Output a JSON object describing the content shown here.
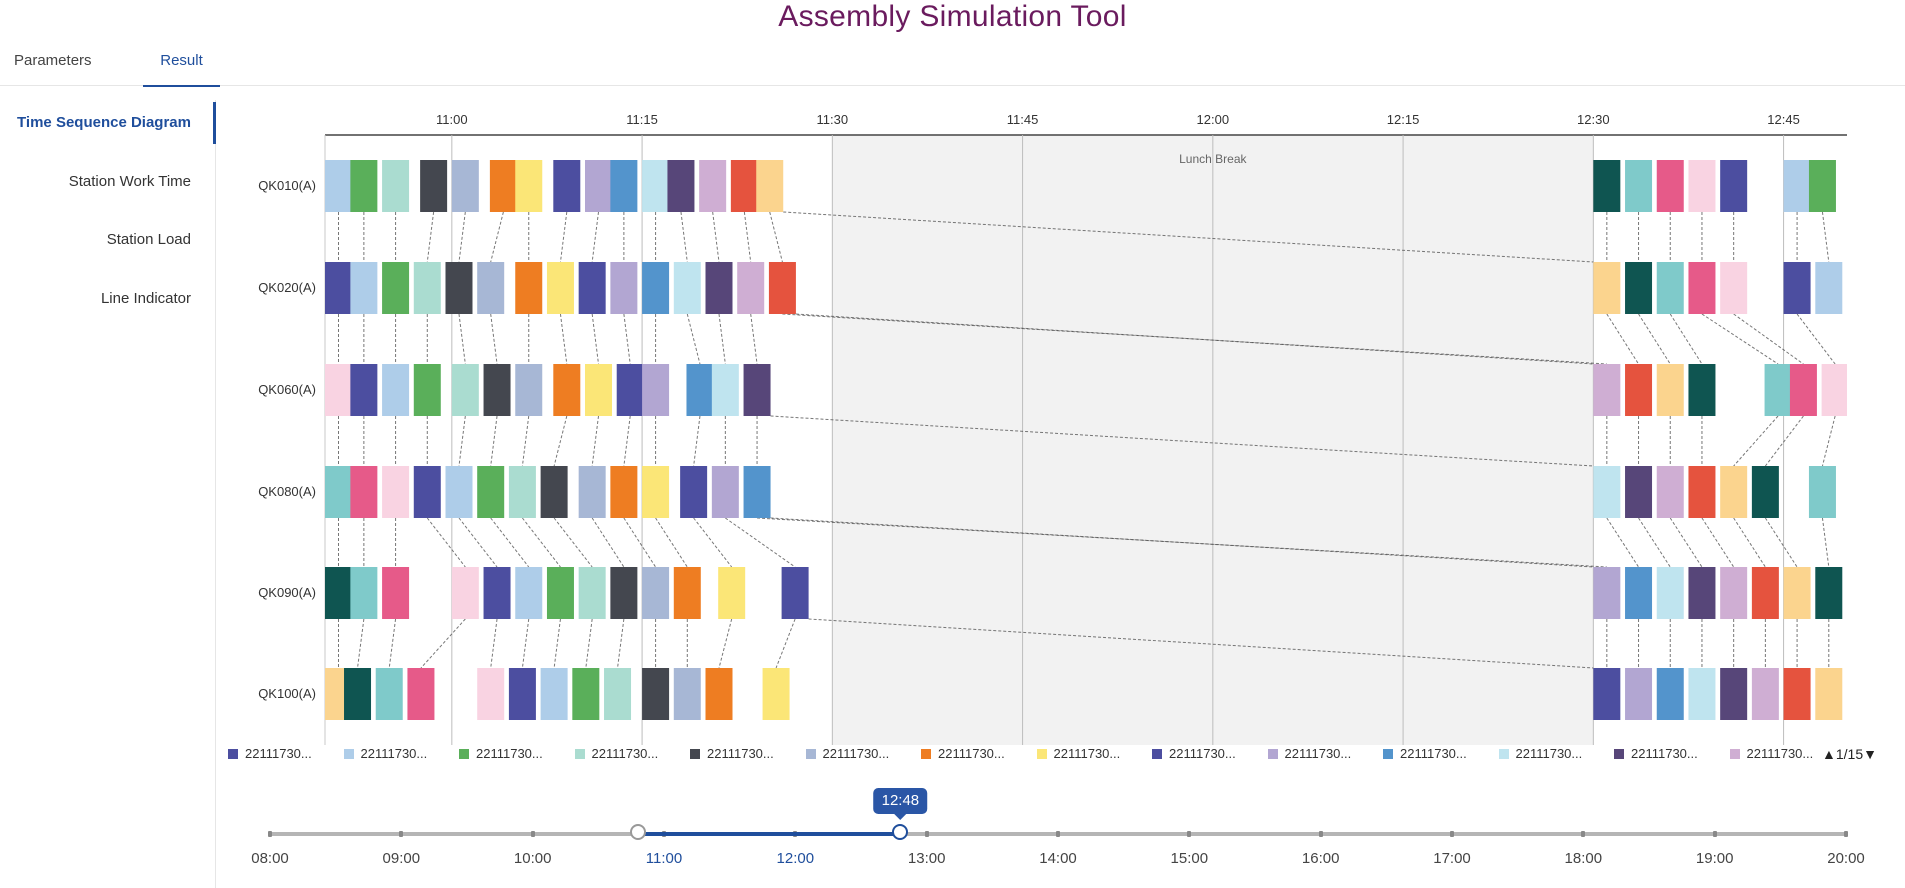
{
  "app": {
    "title": "Assembly Simulation Tool"
  },
  "tabs": [
    {
      "label": "Parameters",
      "active": false
    },
    {
      "label": "Result",
      "active": true
    }
  ],
  "sidebar": {
    "items": [
      {
        "label": "Time Sequence Diagram",
        "active": true
      },
      {
        "label": "Station Work Time",
        "active": false
      },
      {
        "label": "Station Load",
        "active": false
      },
      {
        "label": "Line Indicator",
        "active": false
      }
    ]
  },
  "colors": {
    "navy": "#4c4ea0",
    "light_blue": "#aecde9",
    "green": "#5aaf5a",
    "mint": "#aadcd0",
    "charcoal": "#44474f",
    "steel": "#a7b7d5",
    "orange": "#ee7d22",
    "yellow": "#fbe677",
    "lavender": "#b2a6d2",
    "blue": "#5394cc",
    "pale_cyan": "#bfe4ef",
    "purple": "#574679",
    "mauve": "#cfaed3",
    "red": "#e5533e",
    "peach": "#fbd48e",
    "teal_dark": "#0f5551",
    "teal": "#7fcaca",
    "pink": "#e65a89",
    "pale_pink": "#f9d3e2",
    "accent": "#1f4e9c",
    "title": "#6a1b5e",
    "break_bg": "#f2f2f2"
  },
  "chart_data": {
    "type": "gantt",
    "x_axis": {
      "min": "10:50",
      "max": "12:50",
      "ticks": [
        "11:00",
        "11:15",
        "11:30",
        "11:45",
        "12:00",
        "12:15",
        "12:30",
        "12:45"
      ]
    },
    "break": {
      "label": "Lunch Break",
      "start": "11:30",
      "end": "12:30"
    },
    "stations": [
      "QK010(A)",
      "QK020(A)",
      "QK060(A)",
      "QK080(A)",
      "QK090(A)",
      "QK100(A)"
    ],
    "tasks": [
      [
        [
          "10:50.0",
          "light_blue"
        ],
        [
          "10:52.0",
          "green"
        ],
        [
          "10:54.5",
          "mint"
        ],
        [
          "10:57.5",
          "charcoal"
        ],
        [
          "11:00.0",
          "steel"
        ],
        [
          "11:03.0",
          "orange"
        ],
        [
          "11:05.0",
          "yellow"
        ],
        [
          "11:08.0",
          "navy"
        ],
        [
          "11:10.5",
          "lavender"
        ],
        [
          "11:12.5",
          "blue"
        ],
        [
          "11:15.0",
          "pale_cyan"
        ],
        [
          "11:17.0",
          "purple"
        ],
        [
          "11:19.5",
          "mauve"
        ],
        [
          "11:22.0",
          "red"
        ],
        [
          "11:24.0",
          "peach"
        ],
        [
          "12:30.0",
          "teal_dark"
        ],
        [
          "12:32.5",
          "teal"
        ],
        [
          "12:35.0",
          "pink"
        ],
        [
          "12:37.5",
          "pale_pink"
        ],
        [
          "12:40.0",
          "navy"
        ],
        [
          "12:45.0",
          "light_blue"
        ],
        [
          "12:47.0",
          "green"
        ]
      ],
      [
        [
          "10:50.0",
          "navy"
        ],
        [
          "10:52.0",
          "light_blue"
        ],
        [
          "10:54.5",
          "green"
        ],
        [
          "10:57.0",
          "mint"
        ],
        [
          "10:59.5",
          "charcoal"
        ],
        [
          "11:02.0",
          "steel"
        ],
        [
          "11:05.0",
          "orange"
        ],
        [
          "11:07.5",
          "yellow"
        ],
        [
          "11:10.0",
          "navy"
        ],
        [
          "11:12.5",
          "lavender"
        ],
        [
          "11:15.0",
          "blue"
        ],
        [
          "11:17.5",
          "pale_cyan"
        ],
        [
          "11:20.0",
          "purple"
        ],
        [
          "11:22.5",
          "mauve"
        ],
        [
          "11:25.0",
          "red"
        ],
        [
          "12:30.0",
          "peach"
        ],
        [
          "12:32.5",
          "teal_dark"
        ],
        [
          "12:35.0",
          "teal"
        ],
        [
          "12:37.5",
          "pink"
        ],
        [
          "12:40.0",
          "pale_pink"
        ],
        [
          "12:45.0",
          "navy"
        ],
        [
          "12:47.5",
          "light_blue"
        ]
      ],
      [
        [
          "10:50.0",
          "pale_pink"
        ],
        [
          "10:52.0",
          "navy"
        ],
        [
          "10:54.5",
          "light_blue"
        ],
        [
          "10:57.0",
          "green"
        ],
        [
          "11:00.0",
          "mint"
        ],
        [
          "11:02.5",
          "charcoal"
        ],
        [
          "11:05.0",
          "steel"
        ],
        [
          "11:08.0",
          "orange"
        ],
        [
          "11:10.5",
          "yellow"
        ],
        [
          "11:13.0",
          "navy"
        ],
        [
          "11:15.0",
          "lavender"
        ],
        [
          "11:18.5",
          "blue"
        ],
        [
          "11:20.5",
          "pale_cyan"
        ],
        [
          "11:23.0",
          "purple"
        ],
        [
          "12:30.0",
          "mauve"
        ],
        [
          "12:32.5",
          "red"
        ],
        [
          "12:35.0",
          "peach"
        ],
        [
          "12:37.5",
          "teal_dark"
        ],
        [
          "12:43.5",
          "teal"
        ],
        [
          "12:45.5",
          "pink"
        ],
        [
          "12:48.0",
          "pale_pink"
        ]
      ],
      [
        [
          "10:50.0",
          "teal"
        ],
        [
          "10:52.0",
          "pink"
        ],
        [
          "10:54.5",
          "pale_pink"
        ],
        [
          "10:57.0",
          "navy"
        ],
        [
          "10:59.5",
          "light_blue"
        ],
        [
          "11:02.0",
          "green"
        ],
        [
          "11:04.5",
          "mint"
        ],
        [
          "11:07.0",
          "charcoal"
        ],
        [
          "11:10.0",
          "steel"
        ],
        [
          "11:12.5",
          "orange"
        ],
        [
          "11:15.0",
          "yellow"
        ],
        [
          "11:18.0",
          "navy"
        ],
        [
          "11:20.5",
          "lavender"
        ],
        [
          "11:23.0",
          "blue"
        ],
        [
          "12:30.0",
          "pale_cyan"
        ],
        [
          "12:32.5",
          "purple"
        ],
        [
          "12:35.0",
          "mauve"
        ],
        [
          "12:37.5",
          "red"
        ],
        [
          "12:40.0",
          "peach"
        ],
        [
          "12:42.5",
          "teal_dark"
        ],
        [
          "12:47.0",
          "teal"
        ]
      ],
      [
        [
          "10:50.0",
          "teal_dark"
        ],
        [
          "10:52.0",
          "teal"
        ],
        [
          "10:54.5",
          "pink"
        ],
        [
          "11:00.0",
          "pale_pink"
        ],
        [
          "11:02.5",
          "navy"
        ],
        [
          "11:05.0",
          "light_blue"
        ],
        [
          "11:07.5",
          "green"
        ],
        [
          "11:10.0",
          "mint"
        ],
        [
          "11:12.5",
          "charcoal"
        ],
        [
          "11:15.0",
          "steel"
        ],
        [
          "11:17.5",
          "orange"
        ],
        [
          "11:21.0",
          "yellow"
        ],
        [
          "11:26.0",
          "navy"
        ],
        [
          "12:30.0",
          "lavender"
        ],
        [
          "12:32.5",
          "blue"
        ],
        [
          "12:35.0",
          "pale_cyan"
        ],
        [
          "12:37.5",
          "purple"
        ],
        [
          "12:40.0",
          "mauve"
        ],
        [
          "12:42.5",
          "red"
        ],
        [
          "12:45.0",
          "peach"
        ],
        [
          "12:47.5",
          "teal_dark"
        ]
      ],
      [
        [
          "10:50.0",
          "peach"
        ],
        [
          "10:51.5",
          "teal_dark"
        ],
        [
          "10:54.0",
          "teal"
        ],
        [
          "10:56.5",
          "pink"
        ],
        [
          "11:02.0",
          "pale_pink"
        ],
        [
          "11:04.5",
          "navy"
        ],
        [
          "11:07.0",
          "light_blue"
        ],
        [
          "11:09.5",
          "green"
        ],
        [
          "11:12.0",
          "mint"
        ],
        [
          "11:15.0",
          "charcoal"
        ],
        [
          "11:17.5",
          "steel"
        ],
        [
          "11:20.0",
          "orange"
        ],
        [
          "11:24.5",
          "yellow"
        ],
        [
          "12:30.0",
          "navy"
        ],
        [
          "12:32.5",
          "lavender"
        ],
        [
          "12:35.0",
          "blue"
        ],
        [
          "12:37.5",
          "pale_cyan"
        ],
        [
          "12:40.0",
          "purple"
        ],
        [
          "12:42.5",
          "mauve"
        ],
        [
          "12:45.0",
          "red"
        ],
        [
          "12:47.5",
          "peach"
        ]
      ]
    ]
  },
  "legend": {
    "items": [
      {
        "label": "22111730...",
        "color": "navy"
      },
      {
        "label": "22111730...",
        "color": "light_blue"
      },
      {
        "label": "22111730...",
        "color": "green"
      },
      {
        "label": "22111730...",
        "color": "mint"
      },
      {
        "label": "22111730...",
        "color": "charcoal"
      },
      {
        "label": "22111730...",
        "color": "steel"
      },
      {
        "label": "22111730...",
        "color": "orange"
      },
      {
        "label": "22111730...",
        "color": "yellow"
      },
      {
        "label": "22111730...",
        "color": "navy"
      },
      {
        "label": "22111730...",
        "color": "lavender"
      },
      {
        "label": "22111730...",
        "color": "blue"
      },
      {
        "label": "22111730...",
        "color": "pale_cyan"
      },
      {
        "label": "22111730...",
        "color": "purple"
      },
      {
        "label": "22111730...",
        "color": "mauve"
      }
    ],
    "pager": {
      "prev": "▲",
      "page": "1/15",
      "next": "▼"
    }
  },
  "time_slider": {
    "labels": [
      "08:00",
      "09:00",
      "10:00",
      "11:00",
      "12:00",
      "13:00",
      "14:00",
      "15:00",
      "16:00",
      "17:00",
      "18:00",
      "19:00",
      "20:00"
    ],
    "selected_labels": [
      "11:00",
      "12:00"
    ],
    "range_start": "10:48",
    "range_end": "12:48",
    "tooltip": "12:48"
  }
}
